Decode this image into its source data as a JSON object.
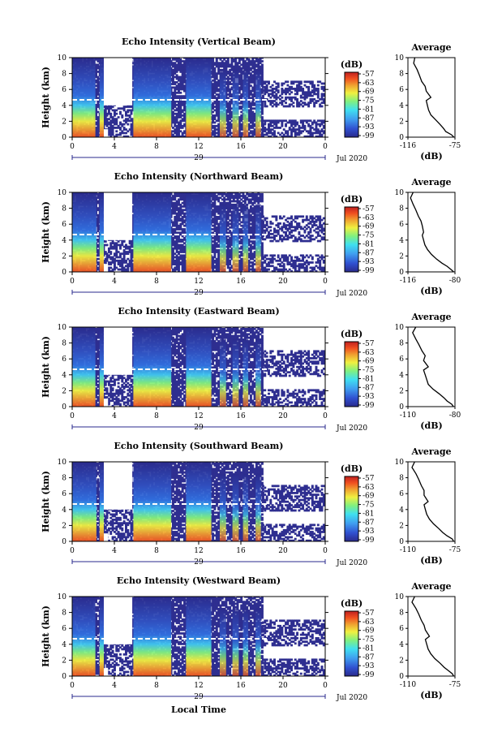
{
  "figure": {
    "x_axis_title": "Local Time",
    "colorbar_unit": "(dB)",
    "colorbar_ticks": [
      "-57",
      "-63",
      "-69",
      "-75",
      "-81",
      "-87",
      "-93",
      "-99"
    ],
    "average_title": "Average",
    "average_xlabel": "(dB)",
    "ylabel": "Height (km)",
    "y_ticks": [
      "0",
      "2",
      "4",
      "6",
      "8",
      "10"
    ],
    "x_ticks": [
      "0",
      "4",
      "8",
      "12",
      "16",
      "20",
      "0"
    ],
    "date_day": "29",
    "date_month_year": "Jul 2020"
  },
  "chart_data": [
    {
      "type": "heatmap",
      "title": "Echo Intensity (Vertical Beam)",
      "x_range": [
        0,
        24
      ],
      "y_range": [
        0,
        10
      ],
      "color_range": [
        -99,
        -57
      ],
      "colorscale": [
        "#2a2a8c",
        "#3050d0",
        "#40a0f0",
        "#40e0f0",
        "#80f080",
        "#f0f040",
        "#f0a030",
        "#f05020",
        "#c02020"
      ],
      "rain_bands_hours": [
        [
          0.0,
          2.2
        ],
        [
          2.6,
          3.0
        ],
        [
          5.8,
          9.4
        ],
        [
          10.8,
          13.2
        ],
        [
          14.0,
          14.6
        ],
        [
          15.2,
          15.8
        ],
        [
          16.2,
          16.7
        ],
        [
          17.4,
          17.9
        ]
      ],
      "average_profile": {
        "title": "Average",
        "xlabel": "(dB)",
        "xlim": [
          -116,
          -75
        ],
        "x": [
          -110,
          -111,
          -108,
          -106,
          -104,
          -101,
          -100,
          -96,
          -100,
          -99,
          -98,
          -96,
          -92,
          -88,
          -85,
          -83,
          -78,
          -76
        ],
        "y": [
          10,
          9.3,
          8.5,
          7.8,
          7.0,
          6.4,
          5.8,
          5.0,
          4.6,
          4.0,
          3.4,
          2.8,
          2.2,
          1.6,
          1.1,
          0.7,
          0.3,
          0.0
        ]
      }
    },
    {
      "type": "heatmap",
      "title": "Echo Intensity (Northward Beam)",
      "x_range": [
        0,
        24
      ],
      "y_range": [
        0,
        10
      ],
      "color_range": [
        -99,
        -57
      ],
      "colorscale": [
        "#2a2a8c",
        "#3050d0",
        "#40a0f0",
        "#40e0f0",
        "#80f080",
        "#f0f040",
        "#f0a030",
        "#f05020",
        "#c02020"
      ],
      "rain_bands_hours": [
        [
          0.0,
          2.3
        ],
        [
          2.6,
          3.0
        ],
        [
          5.8,
          9.4
        ],
        [
          10.8,
          13.2
        ],
        [
          14.0,
          14.6
        ],
        [
          15.2,
          15.8
        ],
        [
          16.2,
          16.7
        ],
        [
          17.4,
          17.9
        ]
      ],
      "average_profile": {
        "title": "Average",
        "xlabel": "(dB)",
        "xlim": [
          -116,
          -80
        ],
        "x": [
          -112,
          -114,
          -112,
          -110,
          -108,
          -106,
          -105,
          -104,
          -105,
          -104,
          -103,
          -101,
          -98,
          -94,
          -90,
          -86,
          -83,
          -81
        ],
        "y": [
          10,
          9.3,
          8.5,
          7.8,
          7.0,
          6.4,
          5.8,
          5.0,
          4.6,
          4.0,
          3.4,
          2.8,
          2.2,
          1.6,
          1.1,
          0.7,
          0.3,
          0.0
        ]
      }
    },
    {
      "type": "heatmap",
      "title": "Echo Intensity (Eastward Beam)",
      "x_range": [
        0,
        24
      ],
      "y_range": [
        0,
        10
      ],
      "color_range": [
        -99,
        -57
      ],
      "colorscale": [
        "#2a2a8c",
        "#3050d0",
        "#40a0f0",
        "#40e0f0",
        "#80f080",
        "#f0f040",
        "#f0a030",
        "#f05020",
        "#c02020"
      ],
      "rain_bands_hours": [
        [
          0.0,
          2.2
        ],
        [
          2.6,
          3.0
        ],
        [
          5.8,
          9.4
        ],
        [
          10.8,
          13.2
        ],
        [
          14.0,
          14.6
        ],
        [
          15.2,
          15.8
        ],
        [
          16.2,
          16.7
        ],
        [
          17.4,
          17.9
        ]
      ],
      "average_profile": {
        "title": "Average",
        "xlabel": "(dB)",
        "xlim": [
          -110,
          -80
        ],
        "x": [
          -105,
          -107,
          -105,
          -103,
          -101,
          -99,
          -100,
          -97,
          -100,
          -99,
          -98,
          -97,
          -94,
          -90,
          -87,
          -85,
          -82,
          -81
        ],
        "y": [
          10,
          9.3,
          8.5,
          7.8,
          7.0,
          6.4,
          5.8,
          5.0,
          4.6,
          4.0,
          3.4,
          2.8,
          2.2,
          1.6,
          1.1,
          0.7,
          0.3,
          0.0
        ]
      }
    },
    {
      "type": "heatmap",
      "title": "Echo Intensity (Southward Beam)",
      "x_range": [
        0,
        24
      ],
      "y_range": [
        0,
        10
      ],
      "color_range": [
        -99,
        -57
      ],
      "colorscale": [
        "#2a2a8c",
        "#3050d0",
        "#40a0f0",
        "#40e0f0",
        "#80f080",
        "#f0f040",
        "#f0a030",
        "#f05020",
        "#c02020"
      ],
      "rain_bands_hours": [
        [
          0.0,
          2.3
        ],
        [
          2.6,
          3.0
        ],
        [
          5.8,
          9.4
        ],
        [
          10.8,
          13.2
        ],
        [
          14.0,
          14.6
        ],
        [
          15.2,
          15.8
        ],
        [
          16.2,
          16.7
        ],
        [
          17.4,
          17.9
        ]
      ],
      "average_profile": {
        "title": "Average",
        "xlabel": "(dB)",
        "xlim": [
          -110,
          -75
        ],
        "x": [
          -105,
          -107,
          -104,
          -102,
          -100,
          -98,
          -98,
          -95,
          -98,
          -97,
          -96,
          -94,
          -91,
          -87,
          -84,
          -81,
          -77,
          -76
        ],
        "y": [
          10,
          9.3,
          8.5,
          7.8,
          7.0,
          6.4,
          5.8,
          5.0,
          4.6,
          4.0,
          3.4,
          2.8,
          2.2,
          1.6,
          1.1,
          0.7,
          0.3,
          0.0
        ]
      }
    },
    {
      "type": "heatmap",
      "title": "Echo Intensity (Westward Beam)",
      "x_range": [
        0,
        24
      ],
      "y_range": [
        0,
        10
      ],
      "color_range": [
        -99,
        -57
      ],
      "colorscale": [
        "#2a2a8c",
        "#3050d0",
        "#40a0f0",
        "#40e0f0",
        "#80f080",
        "#f0f040",
        "#f0a030",
        "#f05020",
        "#c02020"
      ],
      "rain_bands_hours": [
        [
          0.0,
          2.2
        ],
        [
          2.6,
          3.0
        ],
        [
          5.8,
          9.4
        ],
        [
          10.8,
          13.2
        ],
        [
          14.0,
          14.6
        ],
        [
          15.2,
          15.8
        ],
        [
          16.2,
          16.7
        ],
        [
          17.4,
          17.9
        ]
      ],
      "average_profile": {
        "title": "Average",
        "xlabel": "(dB)",
        "xlim": [
          -110,
          -75
        ],
        "x": [
          -105,
          -107,
          -104,
          -102,
          -100,
          -98,
          -97,
          -94,
          -97,
          -96,
          -95,
          -93,
          -90,
          -86,
          -83,
          -80,
          -77,
          -76
        ],
        "y": [
          10,
          9.3,
          8.5,
          7.8,
          7.0,
          6.4,
          5.8,
          5.0,
          4.6,
          4.0,
          3.4,
          2.8,
          2.2,
          1.6,
          1.1,
          0.7,
          0.3,
          0.0
        ]
      }
    }
  ]
}
